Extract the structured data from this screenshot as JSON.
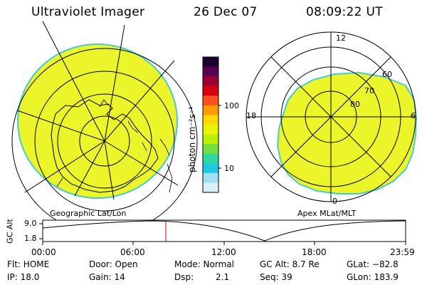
{
  "header": {
    "instrument": "Ultraviolet Imager",
    "date": "26 Dec 07",
    "time": "08:09:22 UT"
  },
  "colorbar": {
    "label": "photon cm⁻²s⁻¹",
    "ticks": [
      "100",
      "10"
    ],
    "colors": [
      "#1a0030",
      "#5a0050",
      "#9a0030",
      "#d80010",
      "#ff5020",
      "#ff9a00",
      "#ffd800",
      "#e8f500",
      "#b8f000",
      "#70e040",
      "#30d8a0",
      "#20c8e0",
      "#a0e0f0",
      "#d8f0f8"
    ]
  },
  "left_map": {
    "caption": "Geographic Lat/Lon",
    "fill_color": "#ecf529"
  },
  "right_map": {
    "caption": "Apex MLat/MLT",
    "lat_labels": [
      "80",
      "70",
      "60"
    ],
    "mlt_labels": {
      "top": "12",
      "left": "18",
      "right": "6",
      "bottom": "0"
    },
    "fill_color": "#ecf529"
  },
  "altitude_plot": {
    "ylabel": "GC Alt",
    "yticks": [
      "9.0",
      "1.8"
    ],
    "xticks": [
      "00:00",
      "06:00",
      "12:00",
      "18:00",
      "23:59"
    ],
    "marker_time": "08:09",
    "marker_color": "#d00000"
  },
  "status": {
    "flt": "Flt: HOME",
    "ip": "IP: 18.0",
    "door": "Door: Open",
    "gain": "Gain: 14",
    "mode": "Mode: Normal",
    "dsp_label": "Dsp:",
    "dsp_value": "2.1",
    "gc_alt": "GC Alt: 8.7 Re",
    "seq": "Seq: 39",
    "glat": "GLat: −82.8",
    "glon": "GLon: 183.9"
  }
}
